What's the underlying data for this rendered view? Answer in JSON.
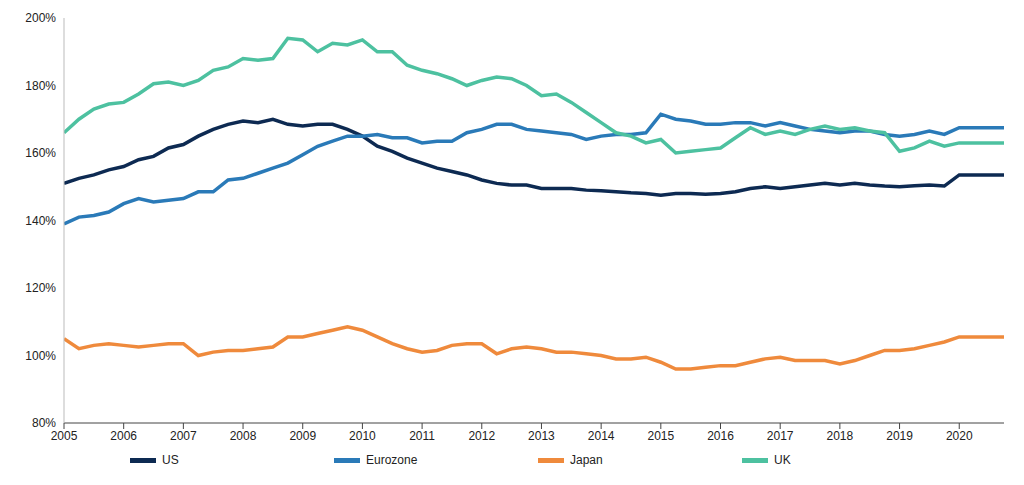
{
  "chart_data": {
    "type": "line",
    "x": [
      2005,
      2005.25,
      2005.5,
      2005.75,
      2006,
      2006.25,
      2006.5,
      2006.75,
      2007,
      2007.25,
      2007.5,
      2007.75,
      2008,
      2008.25,
      2008.5,
      2008.75,
      2009,
      2009.25,
      2009.5,
      2009.75,
      2010,
      2010.25,
      2010.5,
      2010.75,
      2011,
      2011.25,
      2011.5,
      2011.75,
      2012,
      2012.25,
      2012.5,
      2012.75,
      2013,
      2013.25,
      2013.5,
      2013.75,
      2014,
      2014.25,
      2014.5,
      2014.75,
      2015,
      2015.25,
      2015.5,
      2015.75,
      2016,
      2016.25,
      2016.5,
      2016.75,
      2017,
      2017.25,
      2017.5,
      2017.75,
      2018,
      2018.25,
      2018.5,
      2018.75,
      2019,
      2019.25,
      2019.5,
      2019.75,
      2020,
      2020.25,
      2020.5,
      2020.75
    ],
    "series": [
      {
        "name": "US",
        "color": "#0d2a52",
        "values": [
          151,
          152.5,
          153.5,
          155,
          156,
          158,
          159,
          161.5,
          162.5,
          165,
          167,
          168.5,
          169.5,
          169,
          170,
          168.5,
          168,
          168.5,
          168.5,
          167,
          165,
          162,
          160.5,
          158.5,
          157,
          155.5,
          154.5,
          153.5,
          152,
          151,
          150.5,
          150.5,
          149.5,
          149.5,
          149.5,
          149,
          148.8,
          148.5,
          148.2,
          148,
          147.5,
          148,
          148,
          147.8,
          148,
          148.5,
          149.5,
          150,
          149.5,
          150,
          150.5,
          151,
          150.5,
          151,
          150.5,
          150.2,
          150,
          150.3,
          150.5,
          150.2,
          153.5,
          153.5,
          153.5,
          153.5
        ]
      },
      {
        "name": "Eurozone",
        "color": "#2a7ab8",
        "values": [
          139,
          141,
          141.5,
          142.5,
          145,
          146.5,
          145.5,
          146,
          146.5,
          148.5,
          148.5,
          152,
          152.5,
          154,
          155.5,
          157,
          159.5,
          162,
          163.5,
          165,
          165,
          165.5,
          164.5,
          164.5,
          163,
          163.5,
          163.5,
          166,
          167,
          168.5,
          168.5,
          167,
          166.5,
          166,
          165.5,
          164,
          165,
          165.5,
          165.5,
          166,
          171.5,
          170,
          169.5,
          168.5,
          168.5,
          169,
          169,
          168,
          169,
          168,
          167,
          166.5,
          166,
          166.5,
          166.5,
          165.5,
          165,
          165.5,
          166.5,
          165.5,
          167.5,
          167.5,
          167.5,
          167.5
        ]
      },
      {
        "name": "Japan",
        "color": "#ef8a3c",
        "values": [
          105,
          102,
          103,
          103.5,
          103,
          102.5,
          103,
          103.5,
          103.5,
          100,
          101,
          101.5,
          101.5,
          102,
          102.5,
          105.5,
          105.5,
          106.5,
          107.5,
          108.5,
          107.5,
          105.5,
          103.5,
          102,
          101,
          101.5,
          103,
          103.5,
          103.5,
          100.5,
          102,
          102.5,
          102,
          101,
          101,
          100.5,
          100,
          99,
          99,
          99.5,
          98,
          96,
          96,
          96.5,
          97,
          97,
          98,
          99,
          99.5,
          98.5,
          98.5,
          98.5,
          97.5,
          98.5,
          100,
          101.5,
          101.5,
          102,
          103,
          104,
          105.5,
          105.5,
          105.5,
          105.5
        ]
      },
      {
        "name": "UK",
        "color": "#4dc1a0",
        "values": [
          166,
          170,
          173,
          174.5,
          175,
          177.5,
          180.5,
          181,
          180,
          181.5,
          184.5,
          185.5,
          188,
          187.5,
          188,
          194,
          193.5,
          190,
          192.5,
          192,
          193.5,
          190,
          190,
          186,
          184.5,
          183.5,
          182,
          180,
          181.5,
          182.5,
          182,
          180,
          177,
          177.5,
          175,
          172,
          169,
          166,
          165,
          163,
          164,
          160,
          160.5,
          161,
          161.5,
          164.5,
          167.5,
          165.5,
          166.5,
          165.5,
          167,
          168,
          167,
          167.5,
          166.5,
          166,
          160.5,
          161.5,
          163.5,
          162,
          163,
          163,
          163,
          163
        ]
      }
    ],
    "xlim": [
      2005,
      2020.75
    ],
    "xticks": [
      2005,
      2006,
      2007,
      2008,
      2009,
      2010,
      2011,
      2012,
      2013,
      2014,
      2015,
      2016,
      2017,
      2018,
      2019,
      2020
    ],
    "ylim": [
      80,
      200
    ],
    "yticks": [
      {
        "value": 80,
        "label": "80%"
      },
      {
        "value": 100,
        "label": "100%"
      },
      {
        "value": 120,
        "label": "120%"
      },
      {
        "value": 140,
        "label": "140%"
      },
      {
        "value": 160,
        "label": "160%"
      },
      {
        "value": 180,
        "label": "180%"
      },
      {
        "value": 200,
        "label": "200%"
      }
    ],
    "grid": false,
    "legend": "bottom"
  }
}
